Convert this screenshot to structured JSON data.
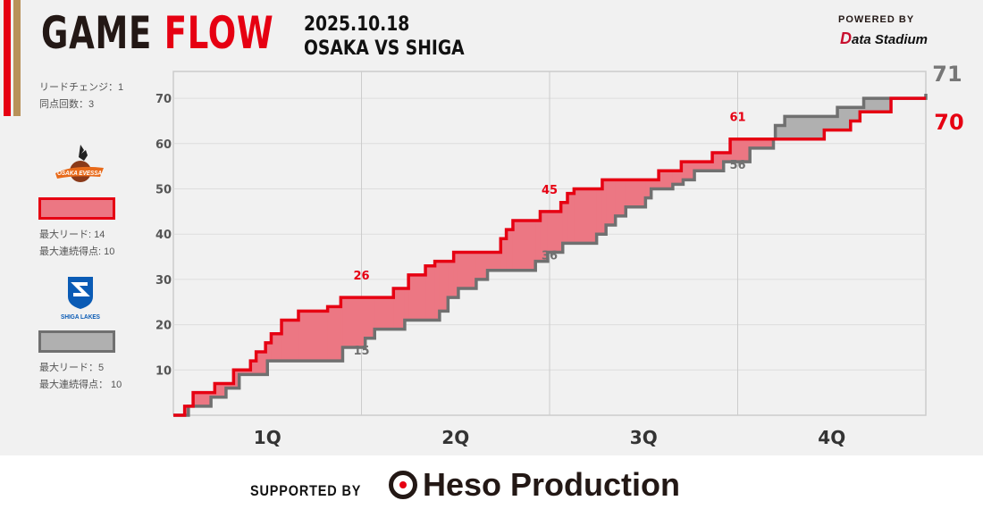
{
  "header": {
    "title_a": "GAME",
    "title_b": "FLOW",
    "date": "2025.10.18",
    "matchup": "OSAKA VS SHIGA",
    "powered_by": "POWERED BY",
    "provider_d": "D",
    "provider_rest": "ata Stadium"
  },
  "stats": {
    "lead_changes": "リードチェンジ：1",
    "ties": "同点回数：3"
  },
  "teams": [
    {
      "name": "OSAKA EVESSA",
      "max_lead": "最大リード: 14",
      "max_run": "最大連続得点: 10",
      "line_color": "#e60012",
      "fill_color": "#ec7783"
    },
    {
      "name": "SHIGA LAKES",
      "max_lead": "最大リード：5",
      "max_run": "最大連続得点： 10",
      "line_color": "#707070",
      "fill_color": "#b0b0b0"
    }
  ],
  "footer": {
    "supported_by": "SUPPORTED BY",
    "sponsor": "Heso Production"
  },
  "chart_data": {
    "type": "line",
    "title": "GAME FLOW",
    "xlabel": "",
    "ylabel": "",
    "xlim": [
      0,
      40
    ],
    "ylim": [
      0,
      75
    ],
    "yticks": [
      10,
      20,
      30,
      40,
      50,
      60,
      70
    ],
    "quarters": [
      "1Q",
      "2Q",
      "3Q",
      "4Q"
    ],
    "grid": true,
    "series": [
      {
        "name": "OSAKA",
        "color": "#e60012",
        "points": [
          [
            0,
            0
          ],
          [
            0.6,
            2
          ],
          [
            1.05,
            5
          ],
          [
            2.2,
            7
          ],
          [
            3.2,
            10
          ],
          [
            4.1,
            12
          ],
          [
            4.4,
            14
          ],
          [
            4.9,
            16
          ],
          [
            5.2,
            18
          ],
          [
            5.75,
            21
          ],
          [
            6.65,
            23
          ],
          [
            8.2,
            24
          ],
          [
            8.9,
            26
          ],
          [
            11.7,
            28
          ],
          [
            12.5,
            31
          ],
          [
            13.4,
            33
          ],
          [
            13.9,
            34
          ],
          [
            14.9,
            36
          ],
          [
            17.4,
            39
          ],
          [
            17.7,
            41
          ],
          [
            18.05,
            43
          ],
          [
            19.5,
            45
          ],
          [
            20.6,
            47
          ],
          [
            20.95,
            49
          ],
          [
            21.3,
            50
          ],
          [
            22.8,
            52
          ],
          [
            25.8,
            54
          ],
          [
            27,
            56
          ],
          [
            28.65,
            58
          ],
          [
            29.6,
            61
          ],
          [
            34.6,
            63
          ],
          [
            36,
            65
          ],
          [
            36.5,
            67
          ],
          [
            38.15,
            70
          ],
          [
            40,
            70
          ]
        ]
      },
      {
        "name": "SHIGA",
        "color": "#707070",
        "points": [
          [
            0,
            0
          ],
          [
            0.8,
            2
          ],
          [
            2,
            4
          ],
          [
            2.8,
            6
          ],
          [
            3.5,
            9
          ],
          [
            5,
            12
          ],
          [
            9,
            15
          ],
          [
            10.2,
            17
          ],
          [
            10.7,
            19
          ],
          [
            12.3,
            21
          ],
          [
            14.15,
            23
          ],
          [
            14.6,
            26
          ],
          [
            15.15,
            28
          ],
          [
            16.1,
            30
          ],
          [
            16.7,
            32
          ],
          [
            19.25,
            34
          ],
          [
            19.9,
            36
          ],
          [
            20.7,
            38
          ],
          [
            22.5,
            40
          ],
          [
            23,
            42
          ],
          [
            23.5,
            44
          ],
          [
            24.05,
            46
          ],
          [
            25.1,
            48
          ],
          [
            25.4,
            50
          ],
          [
            26.55,
            51
          ],
          [
            27.1,
            52
          ],
          [
            27.7,
            54
          ],
          [
            29.25,
            56
          ],
          [
            30.65,
            59
          ],
          [
            31.9,
            61
          ],
          [
            32,
            64
          ],
          [
            32.5,
            66
          ],
          [
            35.3,
            68
          ],
          [
            36.7,
            70
          ],
          [
            40,
            71
          ]
        ]
      }
    ],
    "annotations": [
      {
        "minute": 10,
        "osaka": "26",
        "shiga": "15",
        "osaka_val": 26,
        "shiga_val": 15
      },
      {
        "minute": 20,
        "osaka": "45",
        "shiga": "36",
        "osaka_val": 45,
        "shiga_val": 36
      },
      {
        "minute": 30,
        "osaka": "61",
        "shiga": "56",
        "osaka_val": 61,
        "shiga_val": 56
      }
    ],
    "final": {
      "osaka": "70",
      "shiga": "71"
    }
  }
}
